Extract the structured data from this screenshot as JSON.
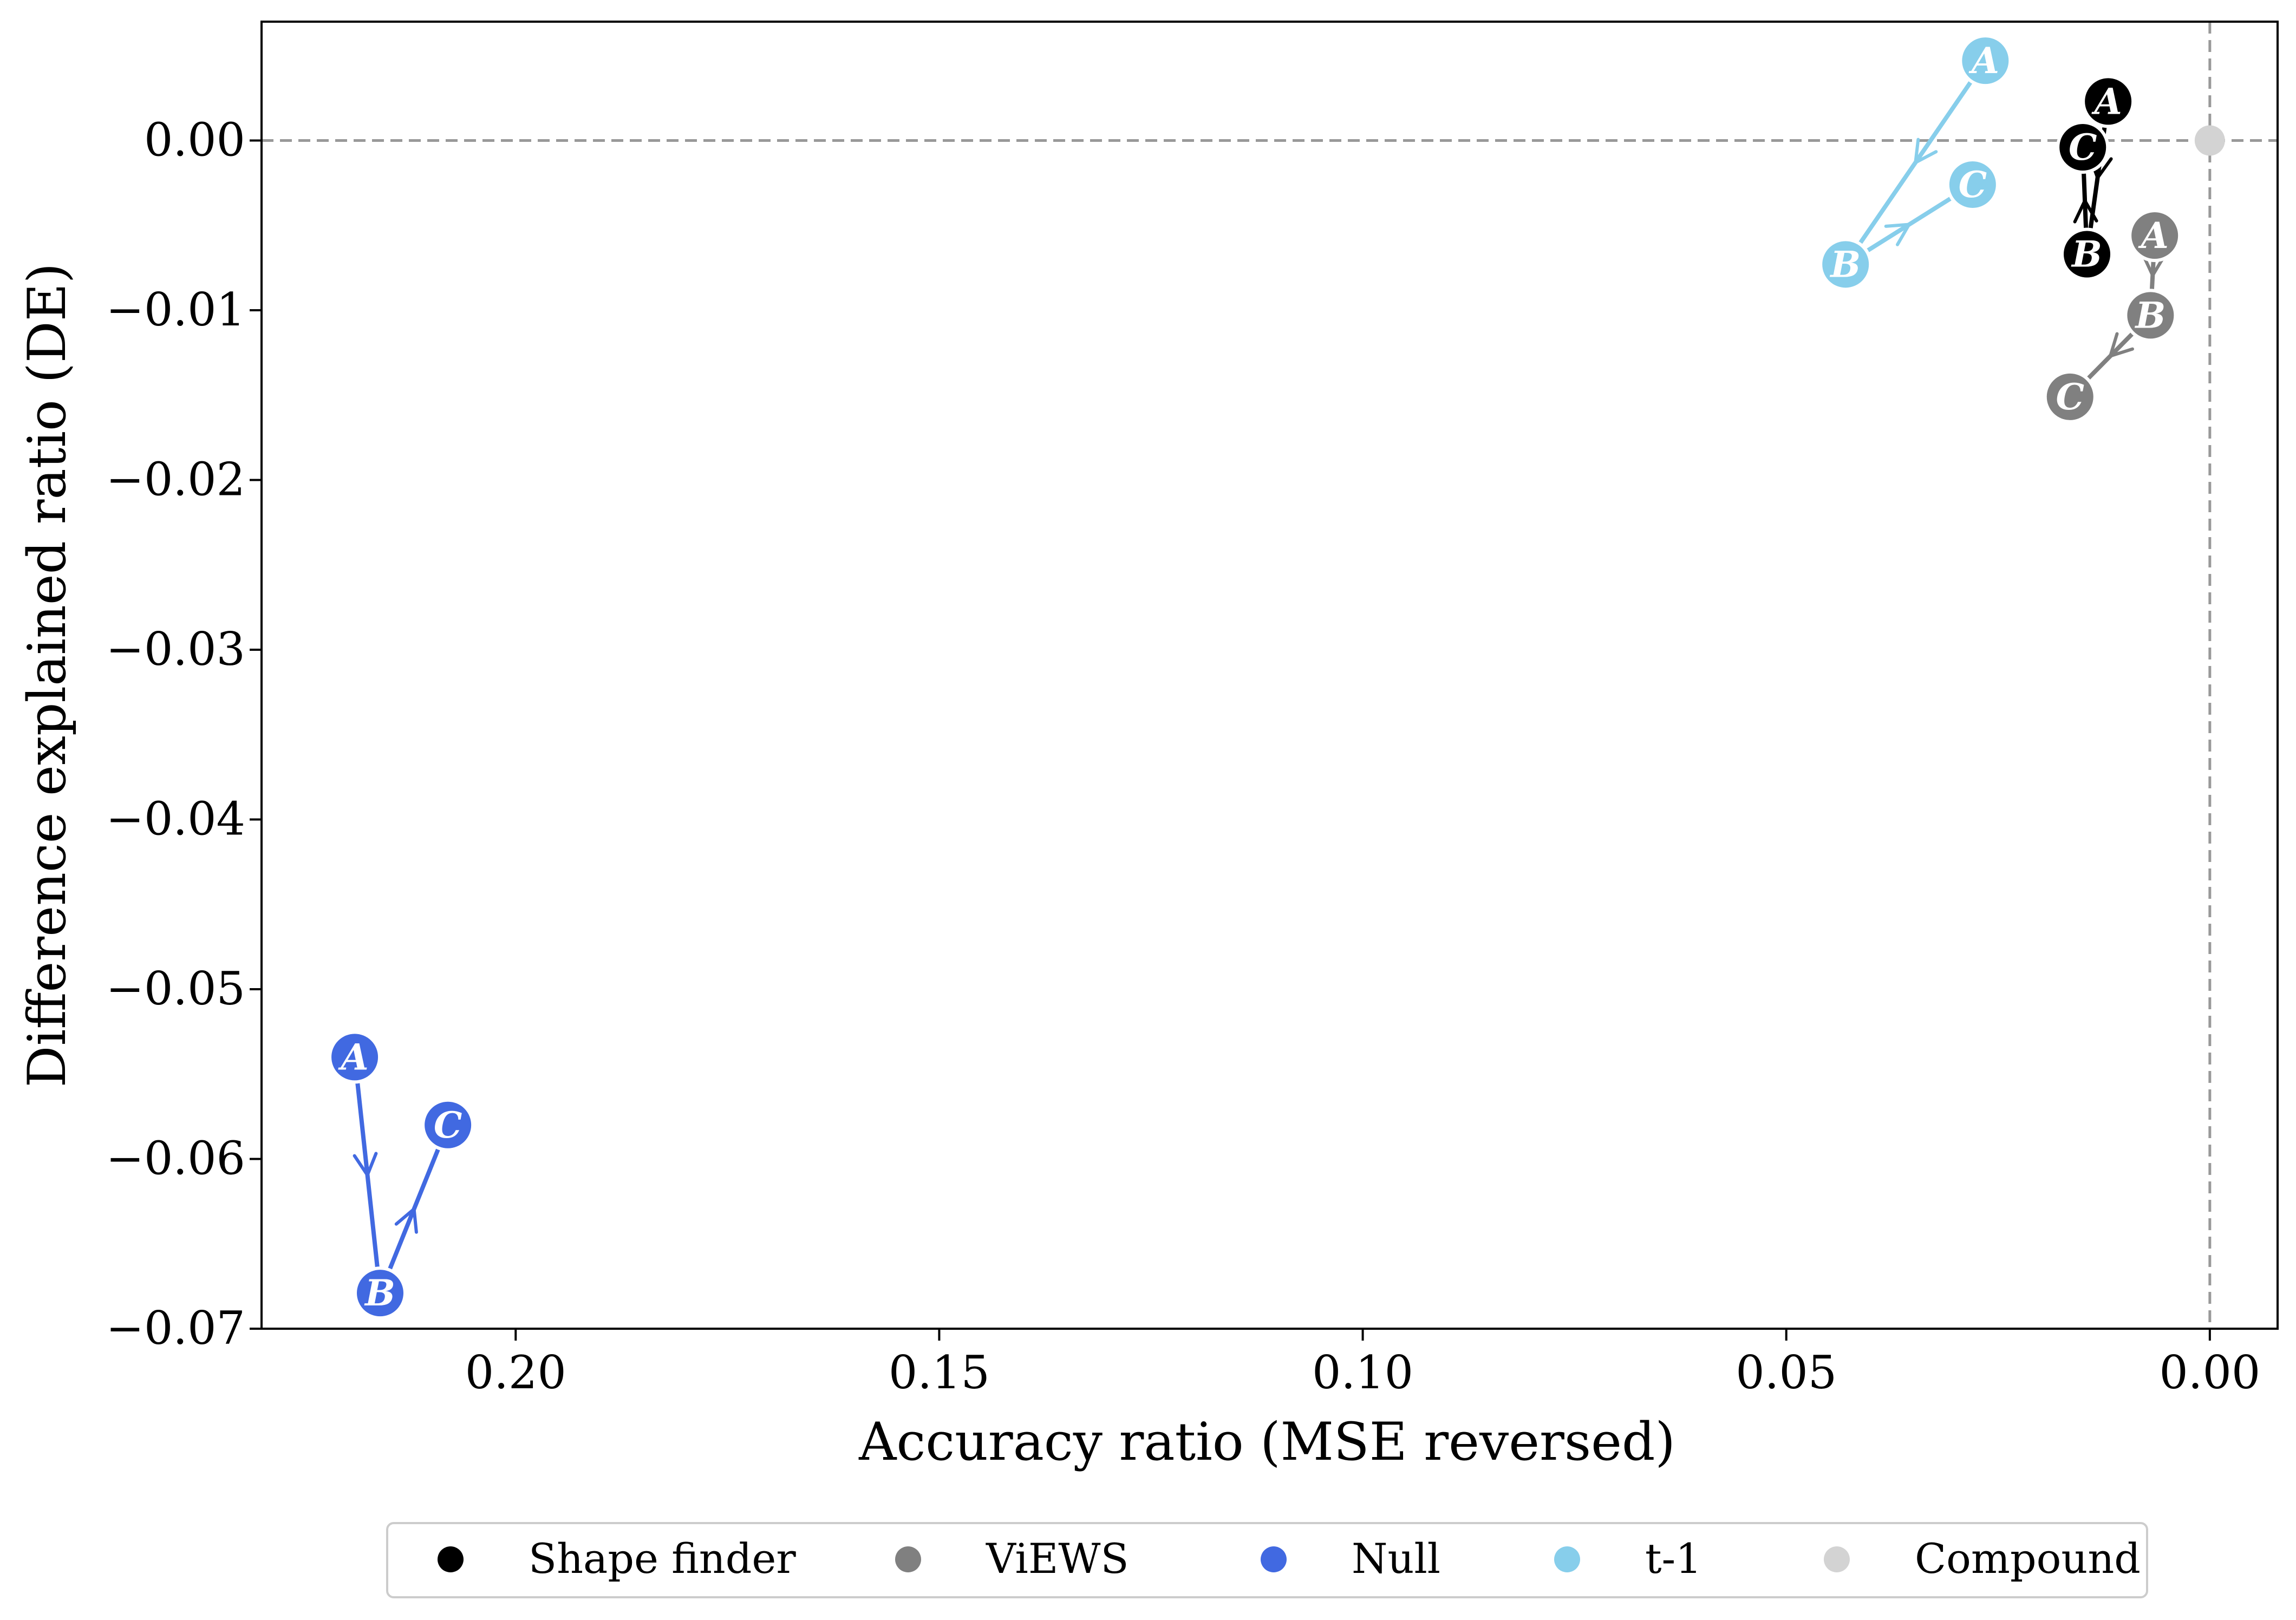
{
  "chart_data": {
    "type": "scatter",
    "title": "",
    "xlabel": "Accuracy ratio (MSE reversed)",
    "ylabel": "Difference explained ratio (DE)",
    "xlim": [
      0.23,
      -0.008
    ],
    "ylim": [
      -0.07,
      0.007
    ],
    "x_reversed": true,
    "x_ticks": [
      0.2,
      0.15,
      0.1,
      0.05,
      0.0
    ],
    "x_tick_labels": [
      "0.20",
      "0.15",
      "0.10",
      "0.05",
      "0.00"
    ],
    "y_ticks": [
      0.0,
      -0.01,
      -0.02,
      -0.03,
      -0.04,
      -0.05,
      -0.06,
      -0.07
    ],
    "y_tick_labels": [
      "0.00",
      "−0.01",
      "−0.02",
      "−0.03",
      "−0.04",
      "−0.05",
      "−0.06",
      "−0.07"
    ],
    "reference_lines": {
      "x": 0.0,
      "y": 0.0,
      "style": "dashed",
      "color": "#999999"
    },
    "grid": false,
    "legend_placement": "bottom-center",
    "series": [
      {
        "name": "Shape finder",
        "color": "#000000",
        "points": [
          {
            "label": "A",
            "x": 0.012,
            "y": 0.0023
          },
          {
            "label": "B",
            "x": 0.0145,
            "y": -0.0067
          },
          {
            "label": "C",
            "x": 0.015,
            "y": -0.0004
          }
        ]
      },
      {
        "name": "ViEWS",
        "color": "#808080",
        "points": [
          {
            "label": "A",
            "x": 0.0065,
            "y": -0.0056
          },
          {
            "label": "B",
            "x": 0.007,
            "y": -0.0103
          },
          {
            "label": "C",
            "x": 0.0165,
            "y": -0.0151
          }
        ]
      },
      {
        "name": "Null",
        "color": "#4169E1",
        "points": [
          {
            "label": "A",
            "x": 0.219,
            "y": -0.054
          },
          {
            "label": "B",
            "x": 0.216,
            "y": -0.0679
          },
          {
            "label": "C",
            "x": 0.208,
            "y": -0.058
          }
        ]
      },
      {
        "name": "t-1",
        "color": "#87CEEB",
        "points": [
          {
            "label": "A",
            "x": 0.0265,
            "y": 0.0047
          },
          {
            "label": "B",
            "x": 0.043,
            "y": -0.0073
          },
          {
            "label": "C",
            "x": 0.028,
            "y": -0.0026
          }
        ]
      },
      {
        "name": "Compound",
        "color": "#D3D3D3",
        "points": [
          {
            "label": "",
            "x": 0.0,
            "y": 0.0
          }
        ]
      }
    ]
  }
}
